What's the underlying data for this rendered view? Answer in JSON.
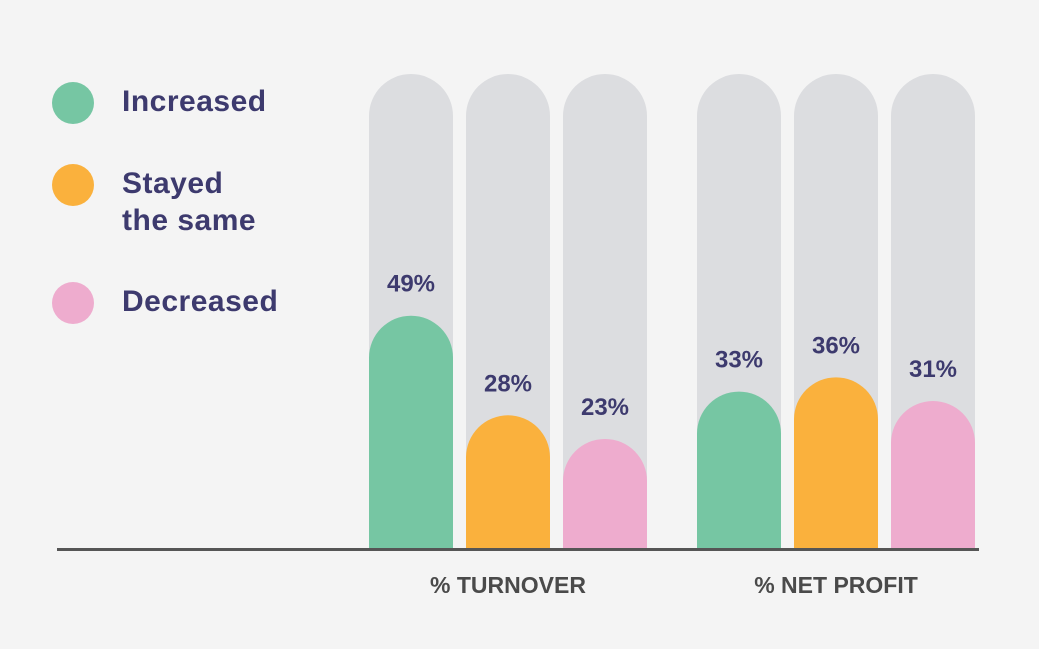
{
  "legend": [
    {
      "label": "Increased",
      "color": "#76c6a3"
    },
    {
      "label": "Stayed\nthe same",
      "color": "#fab13d"
    },
    {
      "label": "Decreased",
      "color": "#eeacce"
    }
  ],
  "colors": {
    "track": "#dcdde0",
    "axis": "#555555",
    "value_label": "#3d3a6e",
    "group_label": "#4a4a4a",
    "background": "#f4f4f4"
  },
  "chart_data": {
    "type": "bar",
    "categories": [
      "% TURNOVER",
      "% NET PROFIT"
    ],
    "series": [
      {
        "name": "Increased",
        "values": [
          49,
          33
        ]
      },
      {
        "name": "Stayed the same",
        "values": [
          28,
          36
        ]
      },
      {
        "name": "Decreased",
        "values": [
          23,
          31
        ]
      }
    ],
    "value_labels": [
      [
        "49%",
        "28%",
        "23%"
      ],
      [
        "33%",
        "36%",
        "31%"
      ]
    ],
    "title": "",
    "xlabel": "",
    "ylabel": "",
    "ylim": [
      0,
      100
    ],
    "grid": false,
    "legend_position": "left"
  }
}
